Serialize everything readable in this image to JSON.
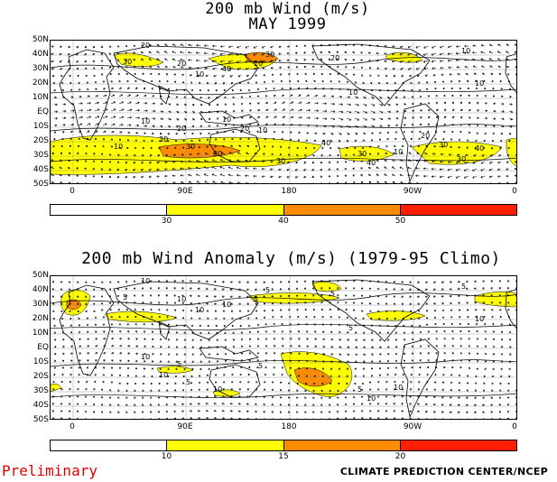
{
  "top_panel": {
    "title_line1": "200 mb Wind (m/s)",
    "title_line2": "MAY 1999",
    "lat_labels": [
      "50N",
      "40N",
      "30N",
      "20N",
      "10N",
      "EQ",
      "10S",
      "20S",
      "30S",
      "40S",
      "50S"
    ],
    "lon_labels": [
      "0",
      "90E",
      "180",
      "90W",
      "0"
    ],
    "colorbar_ticks": [
      "30",
      "40",
      "50"
    ],
    "colorbar_colors": [
      "#ffffff",
      "#ffff00",
      "#ff8c00",
      "#ff1e00"
    ],
    "contour_labels": [
      "20",
      "30",
      "10",
      "20",
      "10",
      "30",
      "40",
      "20",
      "10",
      "10",
      "10",
      "10",
      "20",
      "30",
      "10",
      "30",
      "20",
      "40",
      "30",
      "10",
      "20",
      "30",
      "40",
      "30",
      "40",
      "30",
      "20",
      "10",
      "10"
    ]
  },
  "bottom_panel": {
    "title": "200 mb Wind Anomaly (m/s) (1979-95 Climo)",
    "lat_labels": [
      "50N",
      "40N",
      "30N",
      "20N",
      "10N",
      "EQ",
      "10S",
      "20S",
      "30S",
      "40S",
      "50S"
    ],
    "lon_labels": [
      "0",
      "90E",
      "180",
      "90W",
      "0"
    ],
    "colorbar_ticks": [
      "10",
      "15",
      "20"
    ],
    "colorbar_colors": [
      "#ffffff",
      "#ffff00",
      "#ff8c00",
      "#ff1e00"
    ],
    "contour_labels": [
      "10",
      "5",
      "10",
      "10",
      "5",
      "5",
      "10",
      "5",
      "5",
      "5",
      "10",
      "10",
      "5",
      "10",
      "5",
      "5",
      "10",
      "10",
      "5",
      "10"
    ]
  },
  "footer": {
    "left": "Preliminary",
    "right": "CLIMATE PREDICTION CENTER/NCEP"
  }
}
